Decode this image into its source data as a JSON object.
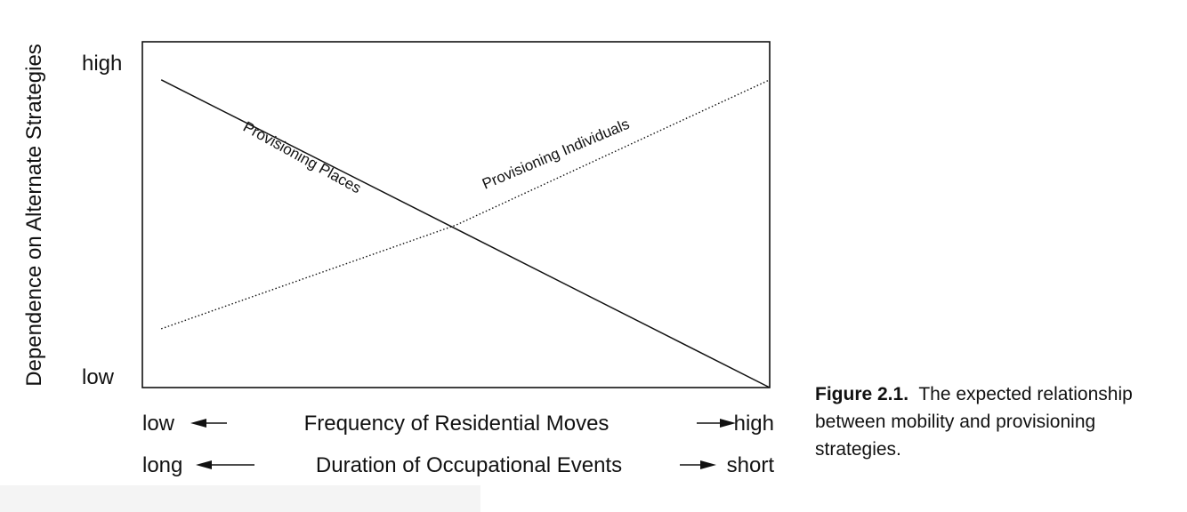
{
  "chart_data": {
    "type": "line",
    "ylabel": "Dependence on Alternate Strategies",
    "y_ticks": [
      "high",
      "low"
    ],
    "ylim": [
      0,
      1
    ],
    "xlim": [
      0,
      1
    ],
    "x_axes": [
      {
        "left": "low",
        "label": "Frequency of Residential Moves",
        "right": "high"
      },
      {
        "left": "long",
        "label": "Duration of Occupational Events",
        "right": "short"
      }
    ],
    "series": [
      {
        "name": "Provisioning Places",
        "style": "solid",
        "x": [
          0.03,
          1.0
        ],
        "y": [
          0.89,
          0.0
        ]
      },
      {
        "name": "Provisioning Individuals",
        "style": "dotted",
        "x": [
          0.03,
          0.5,
          1.0
        ],
        "y": [
          0.17,
          0.47,
          0.89
        ]
      }
    ],
    "grid": false
  },
  "caption": {
    "figure_label": "Figure 2.1.",
    "text": "The expected relationship between mobility and provisioning strategies."
  }
}
